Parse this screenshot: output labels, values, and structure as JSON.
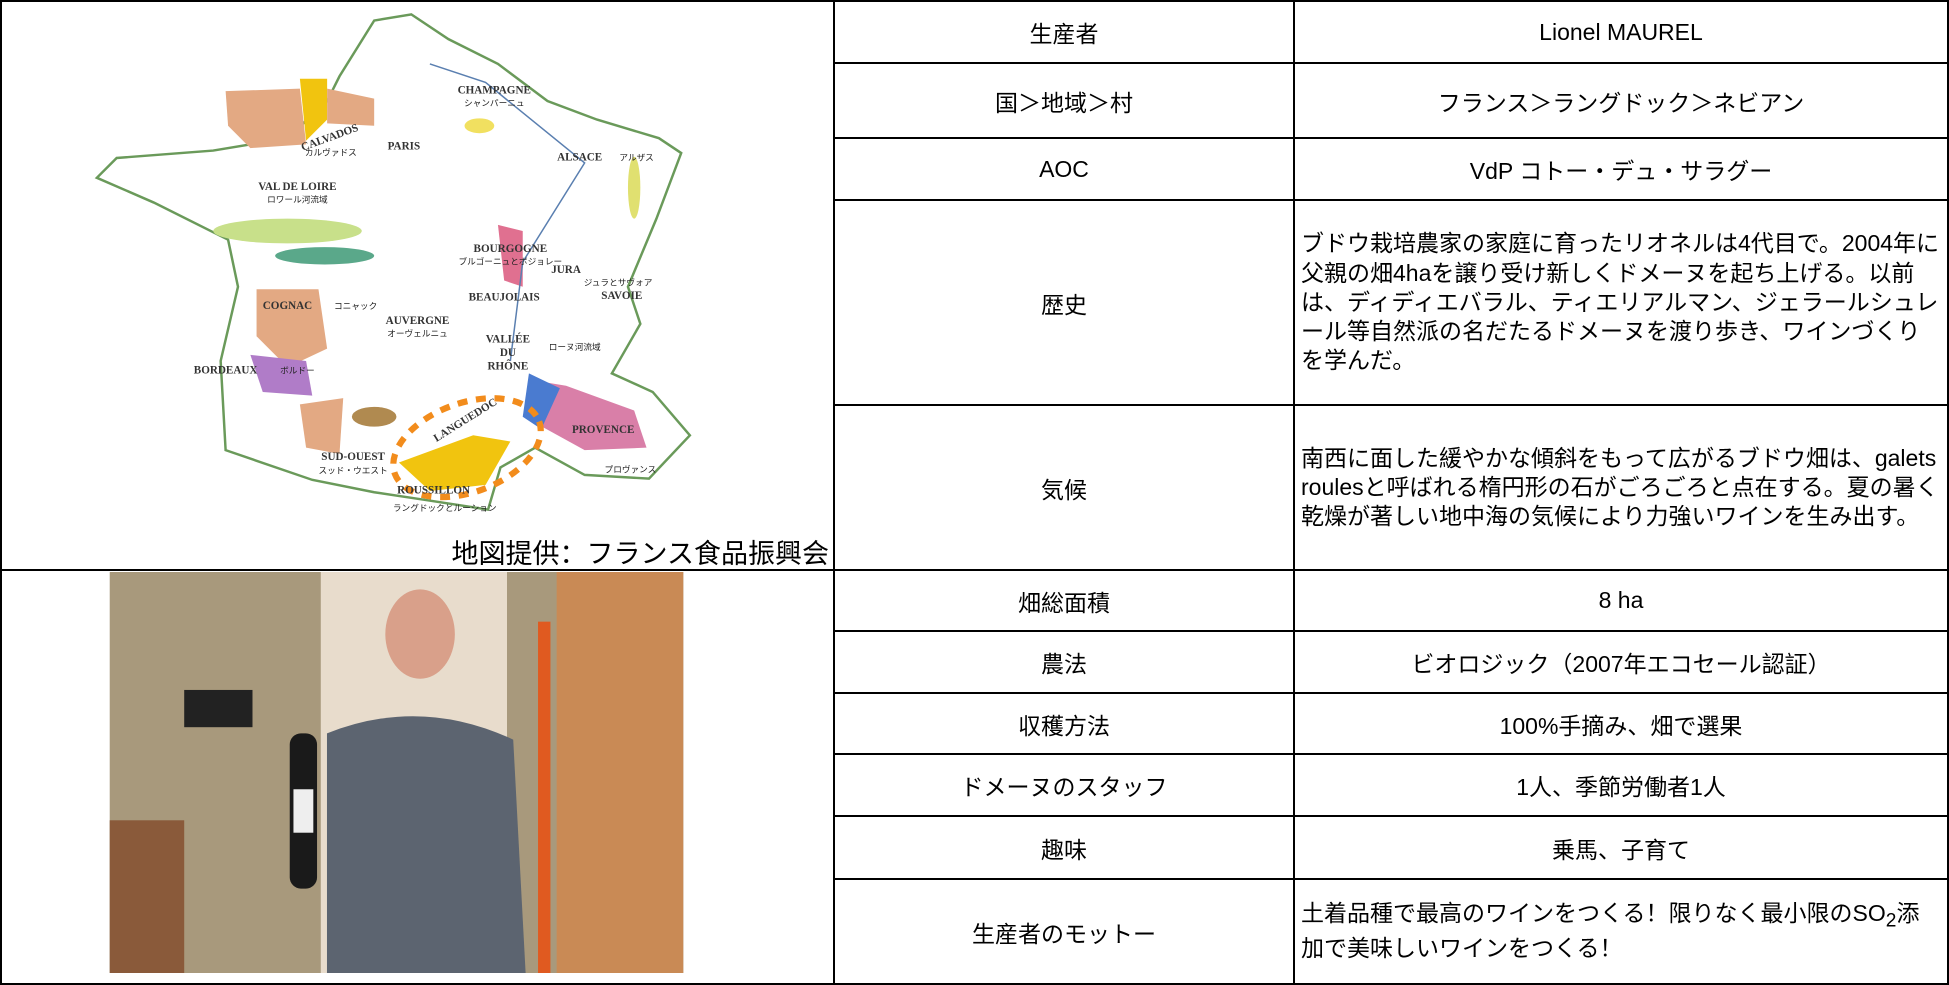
{
  "map": {
    "caption": "地図提供：フランス食品振興会",
    "labels": [
      "CHAMPAGNE",
      "シャンパーニュ",
      "CALVADOS",
      "カルヴァドス",
      "PARIS",
      "ALSACE",
      "アルザス",
      "VAL DE LOIRE",
      "ロワール河流域",
      "BOURGOGNE",
      "ブルゴーニュとボジョレー",
      "JURA",
      "ジュラとサヴォア",
      "SAVOIE",
      "BEAUJOLAIS",
      "COGNAC",
      "コニャック",
      "AUVERGNE",
      "オーヴェルニュ",
      "VALLÉE",
      "DU",
      "RHÔNE",
      "ローヌ河流域",
      "BORDEAUX",
      "ボルドー",
      "LANGUEDOC",
      "PROVENCE",
      "プロヴァンス",
      "SUD-OUEST",
      "スッド・ウエスト",
      "ROUSSILLON",
      "ラングドックとルーション"
    ]
  },
  "table": {
    "rows": [
      [
        "生産者",
        "Lionel MAUREL"
      ],
      [
        "国＞地域＞村",
        "フランス＞ラングドック＞ネビアン"
      ],
      [
        "AOC",
        "VdP コトー・デュ・サラグー"
      ],
      [
        "歴史",
        "ブドウ栽培農家の家庭に育ったリオネルは4代目で。2004年に父親の畑4haを譲り受け新しくドメーヌを起ち上げる。以前は、ディディエバラル、ティエリアルマン、ジェラールシュレール等自然派の名だたるドメーヌを渡り歩き、ワインづくりを学んだ。"
      ],
      [
        "気候",
        "南西に面した緩やかな傾斜をもって広がるブドウ畑は、galets roulesと呼ばれる楕円形の石がごろごろと点在する。夏の暑く乾燥が著しい地中海の気候により力強いワインを生み出す。"
      ],
      [
        "畑総面積",
        "8 ha"
      ],
      [
        "農法",
        "ビオロジック（2007年エコセール認証）"
      ],
      [
        "収穫方法",
        "100%手摘み、畑で選果"
      ],
      [
        "ドメーヌのスタッフ",
        "1人、季節労働者1人"
      ],
      [
        "趣味",
        "乗馬、子育て"
      ],
      [
        "生産者のモットー",
        {
          "before": "土着品種で最高のワインをつくる！限りなく最小限のSO",
          "sub": "2",
          "after": "添加で美味しいワインをつくる！"
        }
      ]
    ]
  }
}
